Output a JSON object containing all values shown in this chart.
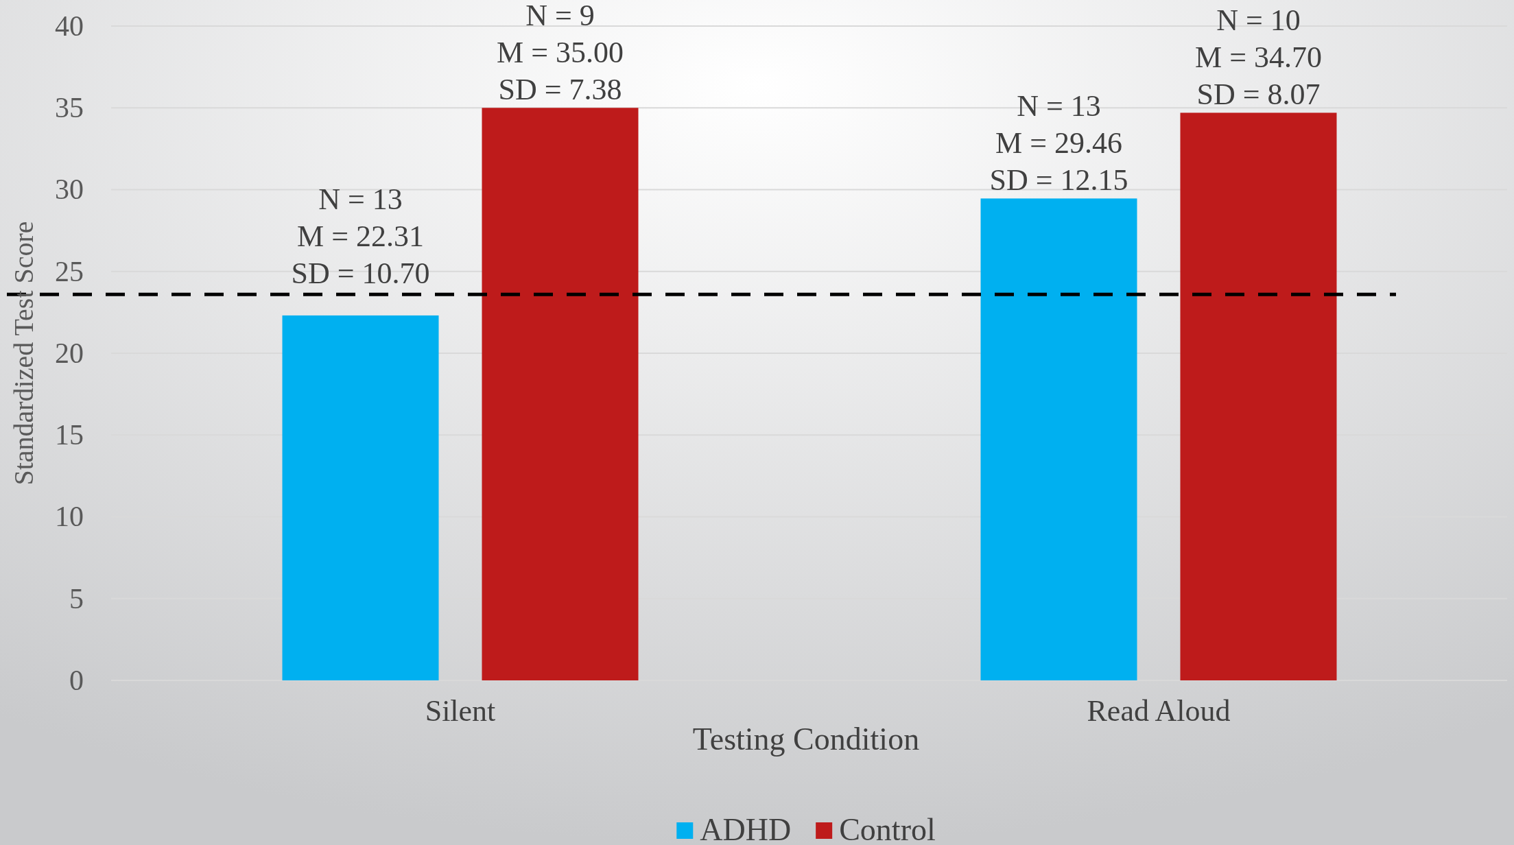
{
  "chart_data": {
    "type": "bar",
    "xlabel": "Testing Condition",
    "ylabel": "Standardized Test Score",
    "categories": [
      "Silent",
      "Read Aloud"
    ],
    "series": [
      {
        "name": "ADHD",
        "color": "#00b0f0",
        "values": [
          22.31,
          29.46
        ],
        "value_labels": [
          "N = 13\nM = 22.31\nSD = 10.70",
          "N = 13\nM = 29.46\nSD = 12.15"
        ]
      },
      {
        "name": "Control",
        "color": "#be1b1b",
        "values": [
          35.0,
          34.7
        ],
        "value_labels": [
          "N = 9\nM = 35.00\nSD = 7.38",
          "N = 10\nM = 34.70\nSD = 8.07"
        ]
      }
    ],
    "ylim": [
      0,
      40
    ],
    "yticks": [
      0,
      5,
      10,
      15,
      20,
      25,
      30,
      35,
      40
    ],
    "grid": "y",
    "legend": "bottom",
    "ref_lines": [
      {
        "axis": "y",
        "value": 23.6,
        "color": "#000000",
        "line_style": "dashed"
      }
    ]
  }
}
